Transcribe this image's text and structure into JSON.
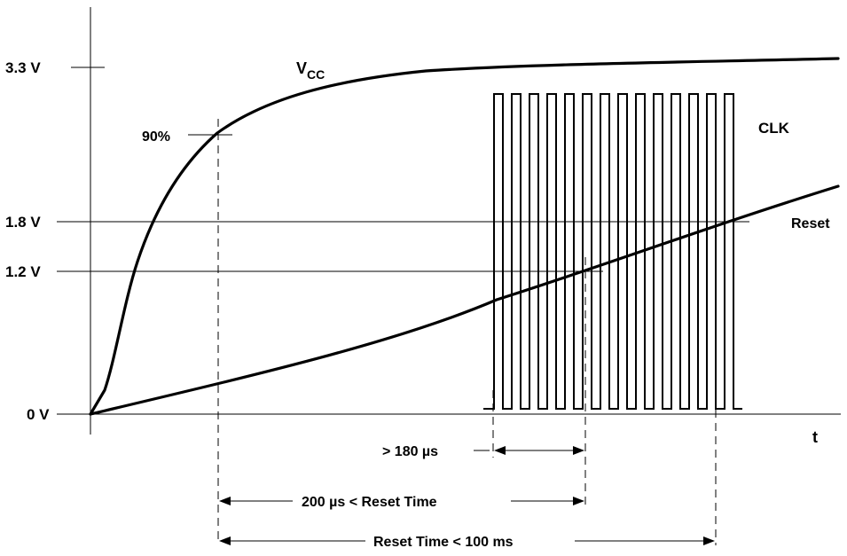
{
  "diagram": {
    "voltage_labels": {
      "v33": "3.3 V",
      "v18": "1.8 V",
      "v12": "1.2 V",
      "v0": "0 V"
    },
    "axis_t": "t",
    "pct90": "90%",
    "signals": {
      "vcc_main": "V",
      "vcc_sub": "CC",
      "clk": "CLK",
      "reset": "Reset"
    },
    "timings": {
      "t180": "> 180 µs",
      "t200": "200 µs < Reset Time",
      "t100": "Reset Time < 100 ms"
    }
  }
}
